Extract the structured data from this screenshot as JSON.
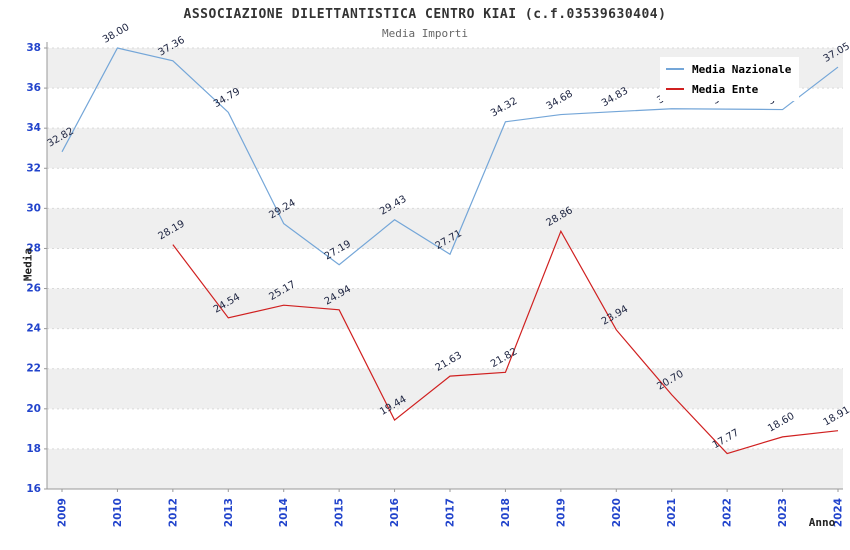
{
  "title": "ASSOCIAZIONE DILETTANTISTICA CENTRO KIAI (c.f.03539630404)",
  "subtitle": "Media Importi",
  "colors": {
    "band": "#efefef",
    "grid": "#d9d9d9",
    "axis": "#999999",
    "tick_label": "#2244cc",
    "data_label": "#1c2340",
    "national_line": "#74a6d8",
    "ente_line": "#d02020"
  },
  "chart_data": {
    "type": "line",
    "title": "ASSOCIAZIONE DILETTANTISTICA CENTRO KIAI (c.f.03539630404)",
    "subtitle": "Media Importi",
    "xlabel": "Anno",
    "ylabel": "Media",
    "ylim": [
      16,
      38
    ],
    "ytick_step": 2,
    "grid": true,
    "legend_position": "top-right",
    "categories": [
      "2009",
      "2010",
      "2012",
      "2013",
      "2014",
      "2015",
      "2016",
      "2017",
      "2018",
      "2019",
      "2020",
      "2021",
      "2022",
      "2023",
      "2024"
    ],
    "series": [
      {
        "name": "Media Nazionale",
        "color": "#74a6d8",
        "values": [
          32.82,
          38.0,
          37.36,
          34.79,
          29.24,
          27.19,
          29.43,
          27.71,
          34.32,
          34.68,
          34.83,
          34.97,
          34.95,
          34.93,
          37.05
        ]
      },
      {
        "name": "Media Ente",
        "color": "#d02020",
        "values": [
          null,
          null,
          28.19,
          24.54,
          25.17,
          24.94,
          19.44,
          21.63,
          21.82,
          28.86,
          23.94,
          20.7,
          17.77,
          18.6,
          18.91
        ]
      }
    ]
  }
}
